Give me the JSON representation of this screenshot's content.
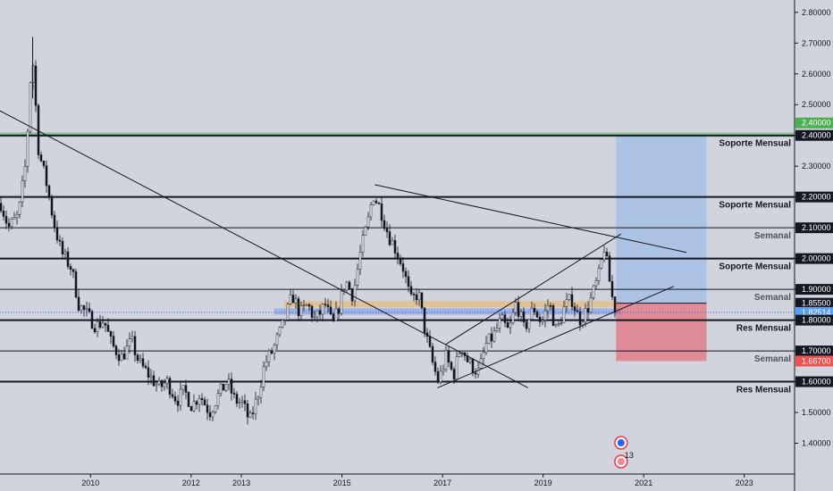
{
  "chart_data": {
    "type": "candlestick",
    "symbol": "",
    "x_axis": {
      "range": [
        2008.2,
        2024.0
      ],
      "tick_labels": [
        "2010",
        "2012",
        "2013",
        "2015",
        "2017",
        "2019",
        "2021",
        "2023"
      ],
      "tick_values": [
        2010.0,
        2012.0,
        2013.0,
        2015.0,
        2017.0,
        2019.0,
        2021.0,
        2023.0
      ]
    },
    "y_axis": {
      "range": [
        1.3,
        2.84
      ],
      "tick_labels": [
        "2.80000",
        "2.70000",
        "2.60000",
        "2.50000",
        "2.40000",
        "2.30000",
        "2.20000",
        "2.10000",
        "2.00000",
        "1.90000",
        "1.80000",
        "1.70000",
        "1.60000",
        "1.50000",
        "1.40000"
      ],
      "tick_values": [
        2.8,
        2.7,
        2.6,
        2.5,
        2.4,
        2.3,
        2.2,
        2.1,
        2.0,
        1.9,
        1.8,
        1.7,
        1.6,
        1.5,
        1.4
      ]
    },
    "colors": {
      "up": "#ffffff",
      "down": "#131722",
      "wick": "#131722",
      "grid": "none"
    },
    "price_path": [
      [
        2008.2,
        2.18
      ],
      [
        2008.35,
        2.1
      ],
      [
        2008.55,
        2.14
      ],
      [
        2008.7,
        2.32
      ],
      [
        2008.82,
        2.68
      ],
      [
        2008.95,
        2.35
      ],
      [
        2009.1,
        2.25
      ],
      [
        2009.25,
        2.12
      ],
      [
        2009.4,
        2.02
      ],
      [
        2009.6,
        1.97
      ],
      [
        2009.75,
        1.85
      ],
      [
        2009.9,
        1.82
      ],
      [
        2010.1,
        1.78
      ],
      [
        2010.25,
        1.8
      ],
      [
        2010.4,
        1.72
      ],
      [
        2010.6,
        1.68
      ],
      [
        2010.8,
        1.73
      ],
      [
        2010.95,
        1.66
      ],
      [
        2011.15,
        1.62
      ],
      [
        2011.35,
        1.58
      ],
      [
        2011.5,
        1.6
      ],
      [
        2011.7,
        1.54
      ],
      [
        2011.85,
        1.57
      ],
      [
        2012.0,
        1.52
      ],
      [
        2012.15,
        1.56
      ],
      [
        2012.35,
        1.5
      ],
      [
        2012.5,
        1.55
      ],
      [
        2012.7,
        1.6
      ],
      [
        2012.85,
        1.54
      ],
      [
        2013.0,
        1.53
      ],
      [
        2013.15,
        1.47
      ],
      [
        2013.3,
        1.55
      ],
      [
        2013.45,
        1.66
      ],
      [
        2013.6,
        1.7
      ],
      [
        2013.8,
        1.78
      ],
      [
        2014.0,
        1.88
      ],
      [
        2014.15,
        1.82
      ],
      [
        2014.3,
        1.85
      ],
      [
        2014.45,
        1.8
      ],
      [
        2014.65,
        1.85
      ],
      [
        2014.8,
        1.78
      ],
      [
        2014.95,
        1.86
      ],
      [
        2015.05,
        1.93
      ],
      [
        2015.2,
        1.88
      ],
      [
        2015.35,
        2.02
      ],
      [
        2015.5,
        2.12
      ],
      [
        2015.6,
        2.21
      ],
      [
        2015.75,
        2.16
      ],
      [
        2015.9,
        2.08
      ],
      [
        2016.05,
        2.03
      ],
      [
        2016.2,
        1.97
      ],
      [
        2016.35,
        1.86
      ],
      [
        2016.5,
        1.89
      ],
      [
        2016.65,
        1.75
      ],
      [
        2016.8,
        1.65
      ],
      [
        2016.9,
        1.6
      ],
      [
        2017.05,
        1.68
      ],
      [
        2017.2,
        1.62
      ],
      [
        2017.35,
        1.72
      ],
      [
        2017.5,
        1.66
      ],
      [
        2017.7,
        1.63
      ],
      [
        2017.85,
        1.72
      ],
      [
        2018.0,
        1.75
      ],
      [
        2018.15,
        1.8
      ],
      [
        2018.3,
        1.76
      ],
      [
        2018.45,
        1.86
      ],
      [
        2018.6,
        1.77
      ],
      [
        2018.8,
        1.84
      ],
      [
        2018.95,
        1.79
      ],
      [
        2019.1,
        1.86
      ],
      [
        2019.25,
        1.76
      ],
      [
        2019.4,
        1.84
      ],
      [
        2019.55,
        1.87
      ],
      [
        2019.7,
        1.8
      ],
      [
        2019.85,
        1.83
      ],
      [
        2020.0,
        1.9
      ],
      [
        2020.1,
        1.95
      ],
      [
        2020.2,
        2.04
      ],
      [
        2020.28,
        1.95
      ],
      [
        2020.38,
        1.85
      ],
      [
        2020.45,
        1.82514
      ]
    ],
    "levels": [
      {
        "price": 2.4,
        "label": "Soporte Mensual",
        "style": "bold"
      },
      {
        "price": 2.2,
        "label": "Soporte Mensual",
        "style": "bold"
      },
      {
        "price": 2.1,
        "label": "Semanal",
        "style": "thin"
      },
      {
        "price": 2.0,
        "label": "Soporte Mensual",
        "style": "bold"
      },
      {
        "price": 1.9,
        "label": "Semanal",
        "style": "thin"
      },
      {
        "price": 1.8,
        "label": "Res Mensual",
        "style": "bold"
      },
      {
        "price": 1.7,
        "label": "Semanal",
        "style": "thin"
      },
      {
        "price": 1.6,
        "label": "Res Mensual",
        "style": "bold"
      }
    ],
    "trendlines": [
      {
        "from": [
          2008.2,
          2.48
        ],
        "to": [
          2018.7,
          1.58
        ]
      },
      {
        "from": [
          2015.65,
          2.24
        ],
        "to": [
          2021.85,
          2.02
        ]
      },
      {
        "from": [
          2016.9,
          1.58
        ],
        "to": [
          2021.6,
          1.91
        ]
      },
      {
        "from": [
          2017.05,
          1.72
        ],
        "to": [
          2020.55,
          2.08
        ]
      }
    ],
    "zones": [
      {
        "x": [
          2008.2,
          2024.0
        ],
        "y": [
          2.395,
          2.41
        ],
        "color": "#4caf50",
        "opacity": 0.45
      },
      {
        "x": [
          2013.85,
          2020.55
        ],
        "y": [
          1.842,
          1.862
        ],
        "color": "#ff9800",
        "opacity": 0.3
      },
      {
        "x": [
          2013.65,
          2020.55
        ],
        "y": [
          1.818,
          1.838
        ],
        "color": "#2962ff",
        "opacity": 0.3
      }
    ],
    "position": {
      "x": [
        2020.45,
        2022.25
      ],
      "entry": 1.855,
      "target": 2.4,
      "stop": 1.667
    },
    "price_labels": [
      {
        "text": "2.40000",
        "price": 2.4,
        "bg": "#4caf50",
        "fg": "#ffffff"
      },
      {
        "text": "2.40000",
        "price": 2.4,
        "bg": "#131722",
        "fg": "#ffffff"
      },
      {
        "text": "2.20000",
        "price": 2.2,
        "bg": "#131722",
        "fg": "#ffffff"
      },
      {
        "text": "2.10000",
        "price": 2.1,
        "bg": "#131722",
        "fg": "#ffffff"
      },
      {
        "text": "2.00000",
        "price": 2.0,
        "bg": "#131722",
        "fg": "#ffffff"
      },
      {
        "text": "1.90000",
        "price": 1.9,
        "bg": "#131722",
        "fg": "#ffffff"
      },
      {
        "text": "1.85500",
        "price": 1.855,
        "bg": "#131722",
        "fg": "#ffffff"
      },
      {
        "text": "1.82514",
        "price": 1.82514,
        "bg": "#5b9cf6",
        "fg": "#ffffff"
      },
      {
        "text": "1.80000",
        "price": 1.8,
        "bg": "#131722",
        "fg": "#ffffff"
      },
      {
        "text": "1.70000",
        "price": 1.7,
        "bg": "#131722",
        "fg": "#ffffff"
      },
      {
        "text": "1.66700",
        "price": 1.667,
        "bg": "#ef5350",
        "fg": "#ffffff"
      },
      {
        "text": "1.60000",
        "price": 1.6,
        "bg": "#131722",
        "fg": "#ffffff"
      }
    ],
    "events": {
      "badge_count": "13"
    }
  }
}
